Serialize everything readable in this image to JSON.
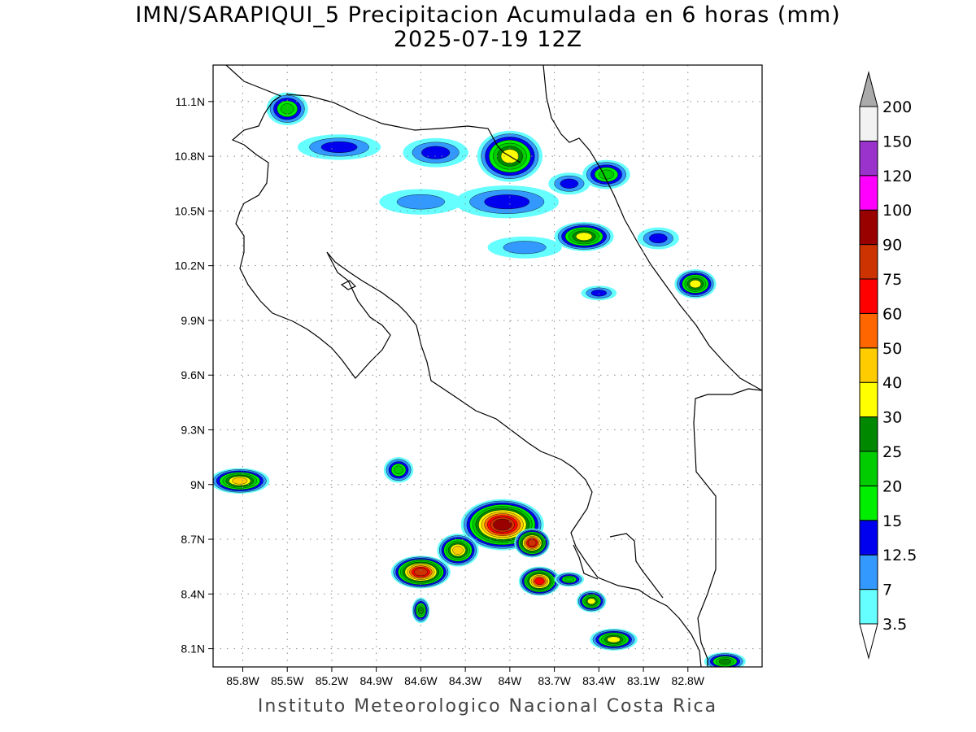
{
  "title": {
    "line1": "IMN/SARAPIQUI_5 Precipitacion Acumulada en 6 horas (mm)",
    "line2": "2025-07-19 12Z"
  },
  "credit": "Instituto Meteorologico Nacional Costa Rica",
  "map": {
    "lon_range": [
      -86.0,
      -82.3
    ],
    "lat_range": [
      8.0,
      11.3
    ],
    "x_ticks": [
      {
        "value": -85.8,
        "label": "85.8W"
      },
      {
        "value": -85.5,
        "label": "85.5W"
      },
      {
        "value": -85.2,
        "label": "85.2W"
      },
      {
        "value": -84.9,
        "label": "84.9W"
      },
      {
        "value": -84.6,
        "label": "84.6W"
      },
      {
        "value": -84.3,
        "label": "84.3W"
      },
      {
        "value": -84.0,
        "label": "84W"
      },
      {
        "value": -83.7,
        "label": "83.7W"
      },
      {
        "value": -83.4,
        "label": "83.4W"
      },
      {
        "value": -83.1,
        "label": "83.1W"
      },
      {
        "value": -82.8,
        "label": "82.8W"
      }
    ],
    "y_ticks": [
      {
        "value": 11.1,
        "label": "11.1N"
      },
      {
        "value": 10.8,
        "label": "10.8N"
      },
      {
        "value": 10.5,
        "label": "10.5N"
      },
      {
        "value": 10.2,
        "label": "10.2N"
      },
      {
        "value": 9.9,
        "label": "9.9N"
      },
      {
        "value": 9.6,
        "label": "9.6N"
      },
      {
        "value": 9.3,
        "label": "9.3N"
      },
      {
        "value": 9.0,
        "label": "9N"
      },
      {
        "value": 8.7,
        "label": "8.7N"
      },
      {
        "value": 8.4,
        "label": "8.4N"
      },
      {
        "value": 8.1,
        "label": "8.1N"
      }
    ],
    "grid": true
  },
  "colorbar": {
    "levels": [
      {
        "label": "3.5",
        "color": "#66ffff"
      },
      {
        "label": "7",
        "color": "#3399ff"
      },
      {
        "label": "12.5",
        "color": "#0000ee"
      },
      {
        "label": "15",
        "color": "#00ee00"
      },
      {
        "label": "20",
        "color": "#00cc00"
      },
      {
        "label": "25",
        "color": "#008800"
      },
      {
        "label": "30",
        "color": "#ffff00"
      },
      {
        "label": "40",
        "color": "#ffcc00"
      },
      {
        "label": "50",
        "color": "#ff6600"
      },
      {
        "label": "60",
        "color": "#ff0000"
      },
      {
        "label": "75",
        "color": "#cc3300"
      },
      {
        "label": "90",
        "color": "#990000"
      },
      {
        "label": "100",
        "color": "#ff00ff"
      },
      {
        "label": "120",
        "color": "#9933cc"
      },
      {
        "label": "150",
        "color": "#f2f2f2"
      },
      {
        "label": "200",
        "color": "#aaaaaa"
      }
    ]
  },
  "chart_data": {
    "type": "heatmap",
    "title": "IMN/SARAPIQUI_5 Precipitacion Acumulada en 6 horas (mm)",
    "subtitle": "2025-07-19 12Z",
    "x_range": [
      -86.0,
      -82.3
    ],
    "y_range": [
      8.0,
      11.3
    ],
    "cells": [
      {
        "lon": -85.5,
        "lat": 11.06,
        "rlon": 0.14,
        "rlat": 0.09,
        "max": 20
      },
      {
        "lon": -85.15,
        "lat": 10.85,
        "rlon": 0.28,
        "rlat": 0.07,
        "max": 12.5
      },
      {
        "lon": -84.5,
        "lat": 10.82,
        "rlon": 0.22,
        "rlat": 0.08,
        "max": 12.5
      },
      {
        "lon": -84.0,
        "lat": 10.8,
        "rlon": 0.22,
        "rlat": 0.14,
        "max": 30
      },
      {
        "lon": -84.02,
        "lat": 10.55,
        "rlon": 0.35,
        "rlat": 0.09,
        "max": 12.5
      },
      {
        "lon": -83.6,
        "lat": 10.65,
        "rlon": 0.14,
        "rlat": 0.06,
        "max": 12.5
      },
      {
        "lon": -83.35,
        "lat": 10.7,
        "rlon": 0.16,
        "rlat": 0.08,
        "max": 20
      },
      {
        "lon": -84.6,
        "lat": 10.55,
        "rlon": 0.28,
        "rlat": 0.07,
        "max": 7
      },
      {
        "lon": -83.5,
        "lat": 10.36,
        "rlon": 0.2,
        "rlat": 0.08,
        "max": 30
      },
      {
        "lon": -83.0,
        "lat": 10.35,
        "rlon": 0.14,
        "rlat": 0.06,
        "max": 12.5
      },
      {
        "lon": -83.9,
        "lat": 10.3,
        "rlon": 0.25,
        "rlat": 0.06,
        "max": 7
      },
      {
        "lon": -82.75,
        "lat": 10.1,
        "rlon": 0.14,
        "rlat": 0.08,
        "max": 30
      },
      {
        "lon": -83.4,
        "lat": 10.05,
        "rlon": 0.12,
        "rlat": 0.04,
        "max": 12.5
      },
      {
        "lon": -85.82,
        "lat": 9.02,
        "rlon": 0.2,
        "rlat": 0.07,
        "max": 40
      },
      {
        "lon": -84.75,
        "lat": 9.08,
        "rlon": 0.1,
        "rlat": 0.07,
        "max": 20
      },
      {
        "lon": -84.05,
        "lat": 8.78,
        "rlon": 0.28,
        "rlat": 0.14,
        "max": 90
      },
      {
        "lon": -84.6,
        "lat": 8.52,
        "rlon": 0.2,
        "rlat": 0.09,
        "max": 75
      },
      {
        "lon": -84.35,
        "lat": 8.64,
        "rlon": 0.14,
        "rlat": 0.09,
        "max": 40
      },
      {
        "lon": -83.85,
        "lat": 8.68,
        "rlon": 0.12,
        "rlat": 0.08,
        "max": 75
      },
      {
        "lon": -83.8,
        "lat": 8.47,
        "rlon": 0.14,
        "rlat": 0.08,
        "max": 60
      },
      {
        "lon": -84.6,
        "lat": 8.31,
        "rlon": 0.06,
        "rlat": 0.07,
        "max": 25
      },
      {
        "lon": -83.45,
        "lat": 8.36,
        "rlon": 0.1,
        "rlat": 0.06,
        "max": 30
      },
      {
        "lon": -83.6,
        "lat": 8.48,
        "rlon": 0.1,
        "rlat": 0.04,
        "max": 20
      },
      {
        "lon": -83.3,
        "lat": 8.15,
        "rlon": 0.16,
        "rlat": 0.06,
        "max": 30
      },
      {
        "lon": -82.55,
        "lat": 8.03,
        "rlon": 0.14,
        "rlat": 0.05,
        "max": 25
      }
    ]
  }
}
